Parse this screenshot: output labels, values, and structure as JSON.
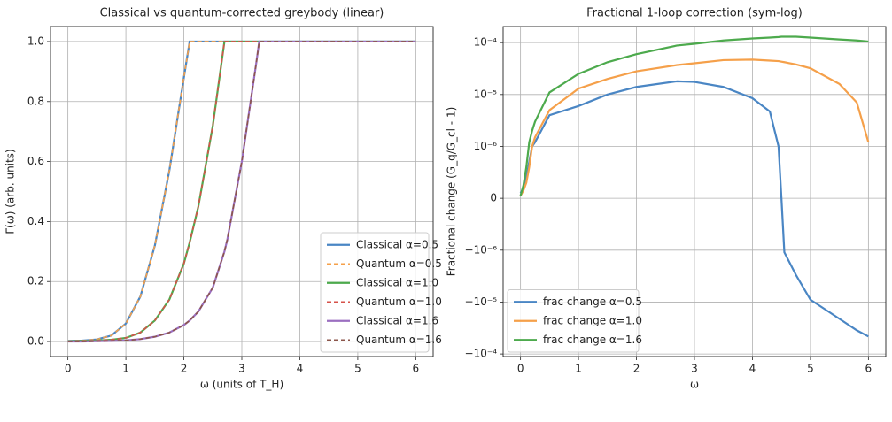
{
  "chart_data": [
    {
      "type": "line",
      "title": "Classical vs quantum-corrected greybody (linear)",
      "x_label": "ω (units of T_H)",
      "y_label": "Γ(ω) (arb. units)",
      "xlim": [
        -0.3,
        6.3
      ],
      "ylim": [
        -0.05,
        1.05
      ],
      "xticks": [
        0,
        1,
        2,
        3,
        4,
        5,
        6
      ],
      "yticks": [
        {
          "value": 0,
          "label": "0.0"
        },
        0.2,
        0.4,
        0.6,
        0.8,
        {
          "value": 1,
          "label": "1.0"
        }
      ],
      "grid": true,
      "legend": "lower right",
      "x": [
        0,
        0.25,
        0.5,
        0.75,
        1,
        1.25,
        1.5,
        1.75,
        2,
        2.1,
        2.25,
        2.5,
        2.7,
        2.75,
        3,
        3.25,
        3.3,
        3.5,
        4,
        4.5,
        5,
        5.5,
        6
      ],
      "series": [
        {
          "name": "Classical α=0.5",
          "color": "#4a86c4",
          "style": "solid",
          "values": [
            0.002,
            0.003,
            0.007,
            0.02,
            0.06,
            0.15,
            0.32,
            0.57,
            0.88,
            1,
            1,
            1,
            1,
            1,
            1,
            1,
            1,
            1,
            1,
            1,
            1,
            1,
            1
          ]
        },
        {
          "name": "Quantum α=0.5",
          "color": "#f5a04a",
          "style": "dashed",
          "values": [
            0.002,
            0.003,
            0.007,
            0.02,
            0.06,
            0.15,
            0.32,
            0.57,
            0.88,
            1,
            1,
            1,
            1,
            1,
            1,
            1,
            1,
            1,
            1,
            1,
            1,
            1,
            1
          ]
        },
        {
          "name": "Classical α=1.0",
          "color": "#4daa4d",
          "style": "solid",
          "values": [
            0.001,
            0.002,
            0.003,
            0.006,
            0.012,
            0.03,
            0.07,
            0.14,
            0.26,
            0.33,
            0.45,
            0.72,
            1,
            1,
            1,
            1,
            1,
            1,
            1,
            1,
            1,
            1,
            1
          ]
        },
        {
          "name": "Quantum α=1.0",
          "color": "#d6524a",
          "style": "dashed",
          "values": [
            0.001,
            0.002,
            0.003,
            0.006,
            0.012,
            0.03,
            0.07,
            0.14,
            0.26,
            0.33,
            0.45,
            0.72,
            1,
            1,
            1,
            1,
            1,
            1,
            1,
            1,
            1,
            1,
            1
          ]
        },
        {
          "name": "Classical α=1.6",
          "color": "#9b6fc0",
          "style": "solid",
          "values": [
            0,
            0,
            0.001,
            0.002,
            0.004,
            0.008,
            0.016,
            0.03,
            0.055,
            0.07,
            0.1,
            0.18,
            0.3,
            0.34,
            0.6,
            0.93,
            1,
            1,
            1,
            1,
            1,
            1,
            1
          ]
        },
        {
          "name": "Quantum α=1.6",
          "color": "#8c564b",
          "style": "dashed",
          "values": [
            0,
            0,
            0.001,
            0.002,
            0.004,
            0.008,
            0.016,
            0.03,
            0.055,
            0.07,
            0.1,
            0.18,
            0.3,
            0.34,
            0.6,
            0.93,
            1,
            1,
            1,
            1,
            1,
            1,
            1
          ]
        }
      ]
    },
    {
      "type": "line",
      "title": "Fractional 1-loop correction (sym-log)",
      "x_label": "ω",
      "y_label": "Fractional change (G_q/G_cl - 1)",
      "y_scale": "symlog",
      "linthresh": 1e-06,
      "xlim": [
        -0.3,
        6.3
      ],
      "ylim": [
        -0.000112,
        0.000204
      ],
      "xticks": [
        0,
        1,
        2,
        3,
        4,
        5,
        6
      ],
      "yticks": [
        {
          "value": -0.0001,
          "label": "−10⁻⁴"
        },
        {
          "value": -1e-05,
          "label": "−10⁻⁵"
        },
        {
          "value": -1e-06,
          "label": "−10⁻⁶"
        },
        0,
        {
          "value": 1e-06,
          "label": "10⁻⁶"
        },
        {
          "value": 1e-05,
          "label": "10⁻⁵"
        },
        {
          "value": 0.0001,
          "label": "10⁻⁴"
        }
      ],
      "grid": true,
      "legend": "lower left",
      "x": [
        0,
        0.05,
        0.1,
        0.15,
        0.2,
        0.25,
        0.5,
        1,
        1.5,
        2,
        2.7,
        3,
        3.5,
        4,
        4.3,
        4.45,
        4.5,
        4.55,
        4.75,
        5,
        5.5,
        5.8,
        6
      ],
      "series": [
        {
          "name": "frac change α=0.5",
          "color": "#4a86c4",
          "style": "solid",
          "values": [
            1e-07,
            2e-07,
            4e-07,
            7e-07,
            1e-06,
            1.2e-06,
            4e-06,
            6e-06,
            1e-05,
            1.4e-05,
            1.8e-05,
            1.75e-05,
            1.4e-05,
            8.5e-06,
            4.7e-06,
            1e-06,
            0,
            -1.1e-06,
            -3e-06,
            -9e-06,
            -2.1e-05,
            -3.5e-05,
            -4.6e-05
          ]
        },
        {
          "name": "frac change α=1.0",
          "color": "#f5a04a",
          "style": "solid",
          "values": [
            5e-08,
            1.5e-07,
            3e-07,
            6e-07,
            1e-06,
            1.5e-06,
            5e-06,
            1.3e-05,
            2e-05,
            2.8e-05,
            3.7e-05,
            4e-05,
            4.6e-05,
            4.7e-05,
            4.5e-05,
            4.4e-05,
            4.3e-05,
            4.2e-05,
            3.8e-05,
            3.2e-05,
            1.6e-05,
            7e-06,
            1.2e-06
          ]
        },
        {
          "name": "frac change α=1.6",
          "color": "#4daa4d",
          "style": "solid",
          "values": [
            5e-08,
            2.5e-07,
            6e-07,
            1.2e-06,
            2e-06,
            3e-06,
            1.1e-05,
            2.5e-05,
            4.2e-05,
            6e-05,
            8.8e-05,
            9.5e-05,
            0.00011,
            0.00012,
            0.000125,
            0.000128,
            0.00013,
            0.00013,
            0.00013,
            0.000125,
            0.000115,
            0.00011,
            0.000105
          ]
        }
      ]
    }
  ]
}
